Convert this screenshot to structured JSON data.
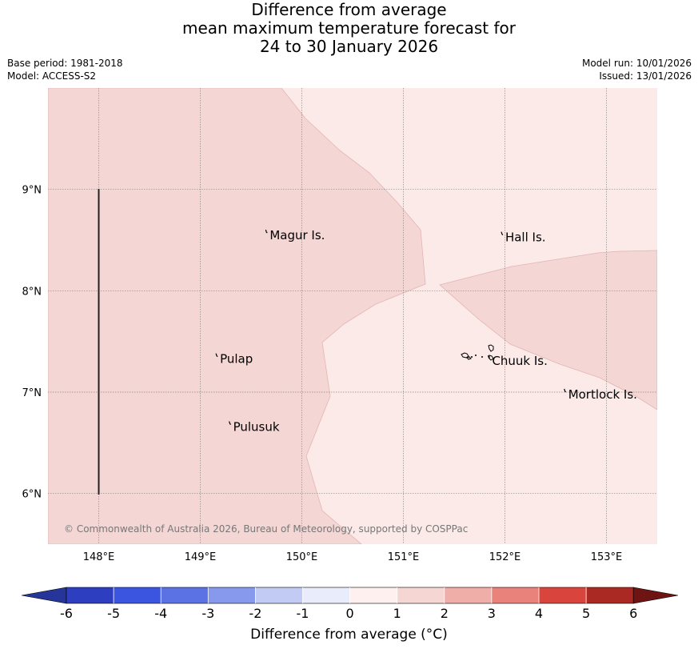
{
  "title": {
    "line1": "Difference from average",
    "line2": "mean maximum temperature forecast for",
    "line3": "24 to 30 January 2026"
  },
  "meta": {
    "base_period": "Base period: 1981-2018",
    "model": "Model: ACCESS-S2",
    "model_run": "Model run: 10/01/2026",
    "issued": "Issued: 13/01/2026"
  },
  "map": {
    "lon_range": [
      147.5,
      153.5
    ],
    "lat_range": [
      5.5,
      10.0
    ],
    "lon_ticks": [
      {
        "value": 148,
        "label": "148°E"
      },
      {
        "value": 149,
        "label": "149°E"
      },
      {
        "value": 150,
        "label": "150°E"
      },
      {
        "value": 151,
        "label": "151°E"
      },
      {
        "value": 152,
        "label": "152°E"
      },
      {
        "value": 153,
        "label": "153°E"
      }
    ],
    "lat_ticks": [
      {
        "value": 9,
        "label": "9°N"
      },
      {
        "value": 8,
        "label": "8°N"
      },
      {
        "value": 7,
        "label": "7°N"
      },
      {
        "value": 6,
        "label": "6°N"
      }
    ],
    "places": [
      {
        "name": "Magur Is.",
        "lon": 149.66,
        "lat": 8.57
      },
      {
        "name": "Hall Is.",
        "lon": 151.98,
        "lat": 8.55
      },
      {
        "name": "Pulap",
        "lon": 149.17,
        "lat": 7.35
      },
      {
        "name": "Chuuk Is.",
        "lon": 151.85,
        "lat": 7.33
      },
      {
        "name": "Mortlock Is.",
        "lon": 152.6,
        "lat": 7.0
      },
      {
        "name": "Pulusuk",
        "lon": 149.3,
        "lat": 6.68
      }
    ],
    "background_color": "#fbeae8",
    "anomaly_region_color": "#f4d6d4",
    "copyright": "© Commonwealth of Australia 2026, Bureau of Meteorology, supported by COSPPac"
  },
  "colorbar": {
    "tick_labels": [
      "-6",
      "-5",
      "-4",
      "-3",
      "-2",
      "-1",
      "0",
      "1",
      "2",
      "3",
      "4",
      "5",
      "6"
    ],
    "colors": [
      "#26359a",
      "#2d3fc0",
      "#3b55e0",
      "#5a72e3",
      "#8799ec",
      "#c2cbf3",
      "#e9ecfa",
      "#fdf0ee",
      "#f5d6d2",
      "#efaea8",
      "#e8827b",
      "#d9453c",
      "#aa2a23",
      "#6e1412"
    ],
    "label": "Difference from average (°C)"
  }
}
